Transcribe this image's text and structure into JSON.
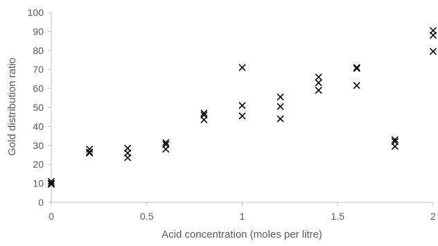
{
  "chart_data": {
    "type": "scatter",
    "title": "",
    "xlabel": "Acid concentration (moles per litre)",
    "ylabel": "Gold distribution ratio",
    "xlim": [
      0,
      2
    ],
    "ylim": [
      0,
      100
    ],
    "x_ticks": [
      "0",
      "0.5",
      "1",
      "1.5",
      "2"
    ],
    "y_ticks": [
      "0",
      "10",
      "20",
      "30",
      "40",
      "50",
      "60",
      "70",
      "80",
      "90",
      "100"
    ],
    "grid": false,
    "legend": "none",
    "marker": "x",
    "colors": {
      "marker": "#000000",
      "axis": "#bfbfbf",
      "text": "#595959"
    },
    "series": [
      {
        "x": [
          0,
          0,
          0,
          0.2,
          0.2,
          0.2,
          0.4,
          0.4,
          0.4,
          0.6,
          0.6,
          0.6,
          0.8,
          0.8,
          0.8,
          1.0,
          1.0,
          1.0,
          1.2,
          1.2,
          1.2,
          1.4,
          1.4,
          1.4,
          1.6,
          1.6,
          1.6,
          1.8,
          1.8,
          1.8,
          2.0,
          2.0,
          2.0
        ],
        "y": [
          11,
          10,
          9.5,
          28,
          26.5,
          26,
          28.5,
          26,
          23.5,
          31.5,
          30.5,
          28,
          47,
          46,
          43.5,
          71,
          51,
          45.5,
          55.5,
          50.5,
          44,
          66,
          63,
          59,
          71,
          70.5,
          61.5,
          33,
          32,
          29.5,
          90.5,
          88,
          79.5
        ]
      }
    ]
  }
}
